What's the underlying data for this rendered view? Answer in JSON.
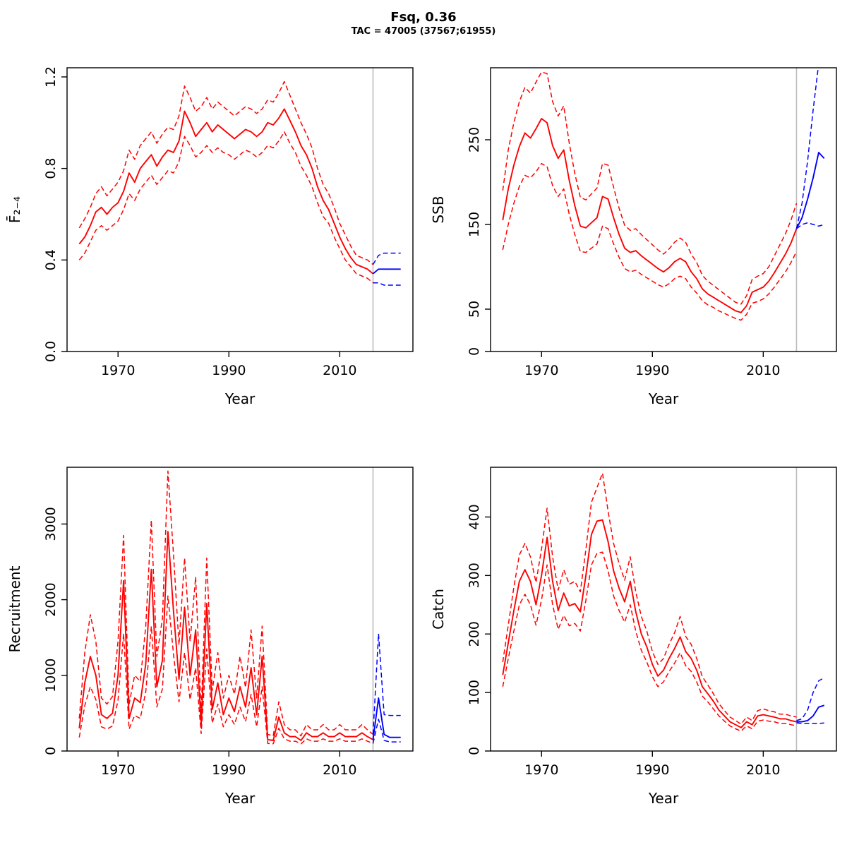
{
  "header": {
    "title": "Fsq, 0.36",
    "subtitle": "TAC = 47005 (37567;61955)"
  },
  "colors": {
    "historical": "#FF0000",
    "projection": "#0000FF",
    "assessment_year_line": "#BDBDBD",
    "axis": "#000000"
  },
  "chart_data": [
    {
      "type": "line",
      "panel": "fbar",
      "ylabel": "F̄₂₋₄",
      "xlabel": "Year",
      "xlim": [
        1960.8,
        2023.2
      ],
      "ylim": [
        0,
        1.24
      ],
      "xticks": [
        1970,
        1990,
        2010
      ],
      "yticks": [
        0,
        0.4,
        0.8,
        1.2
      ],
      "ytick_labels": [
        "0.0",
        "0.4",
        "0.8",
        "1.2"
      ],
      "vline_year": 2016,
      "series": [
        {
          "name": "hist-lower-ci",
          "color": "#FF0000",
          "dash": true,
          "start": 1963,
          "values": [
            0.4,
            0.43,
            0.48,
            0.53,
            0.55,
            0.53,
            0.55,
            0.57,
            0.62,
            0.69,
            0.66,
            0.71,
            0.74,
            0.77,
            0.73,
            0.76,
            0.79,
            0.78,
            0.83,
            0.94,
            0.9,
            0.85,
            0.87,
            0.9,
            0.87,
            0.89,
            0.87,
            0.86,
            0.84,
            0.86,
            0.88,
            0.87,
            0.85,
            0.87,
            0.9,
            0.89,
            0.92,
            0.96,
            0.91,
            0.87,
            0.81,
            0.77,
            0.72,
            0.65,
            0.59,
            0.56,
            0.5,
            0.45,
            0.4,
            0.37,
            0.34,
            0.33,
            0.32,
            0.3
          ]
        },
        {
          "name": "hist-upper-ci",
          "color": "#FF0000",
          "dash": true,
          "start": 1963,
          "values": [
            0.54,
            0.58,
            0.63,
            0.69,
            0.72,
            0.68,
            0.71,
            0.74,
            0.79,
            0.88,
            0.84,
            0.9,
            0.93,
            0.96,
            0.91,
            0.95,
            0.98,
            0.97,
            1.03,
            1.16,
            1.11,
            1.05,
            1.07,
            1.11,
            1.06,
            1.09,
            1.07,
            1.05,
            1.03,
            1.05,
            1.07,
            1.06,
            1.04,
            1.06,
            1.1,
            1.09,
            1.13,
            1.18,
            1.12,
            1.06,
            1.0,
            0.95,
            0.89,
            0.8,
            0.73,
            0.69,
            0.63,
            0.56,
            0.51,
            0.46,
            0.42,
            0.41,
            0.4,
            0.38
          ]
        },
        {
          "name": "hist-median",
          "color": "#FF0000",
          "dash": false,
          "start": 1963,
          "values": [
            0.47,
            0.5,
            0.55,
            0.61,
            0.63,
            0.6,
            0.63,
            0.65,
            0.7,
            0.78,
            0.74,
            0.8,
            0.83,
            0.86,
            0.81,
            0.85,
            0.88,
            0.87,
            0.92,
            1.05,
            1.0,
            0.94,
            0.97,
            1.0,
            0.96,
            0.99,
            0.97,
            0.95,
            0.93,
            0.95,
            0.97,
            0.96,
            0.94,
            0.96,
            1.0,
            0.99,
            1.02,
            1.06,
            1.01,
            0.96,
            0.9,
            0.86,
            0.8,
            0.72,
            0.66,
            0.62,
            0.56,
            0.5,
            0.45,
            0.41,
            0.38,
            0.37,
            0.36,
            0.34
          ]
        },
        {
          "name": "proj-lower-ci",
          "color": "#0000FF",
          "dash": true,
          "start": 2016,
          "values": [
            0.3,
            0.3,
            0.29,
            0.29,
            0.29,
            0.29
          ]
        },
        {
          "name": "proj-upper-ci",
          "color": "#0000FF",
          "dash": true,
          "start": 2016,
          "values": [
            0.38,
            0.42,
            0.43,
            0.43,
            0.43,
            0.43
          ]
        },
        {
          "name": "proj-median",
          "color": "#0000FF",
          "dash": false,
          "start": 2016,
          "values": [
            0.34,
            0.36,
            0.36,
            0.36,
            0.36,
            0.36
          ]
        }
      ]
    },
    {
      "type": "line",
      "panel": "ssb",
      "ylabel": "SSB",
      "xlabel": "Year",
      "xlim": [
        1960.8,
        2023.2
      ],
      "ylim": [
        0,
        335
      ],
      "xticks": [
        1970,
        1990,
        2010
      ],
      "yticks": [
        0,
        50,
        150,
        250
      ],
      "ytick_labels": [
        "0",
        "50",
        "150",
        "250"
      ],
      "vline_year": 2016,
      "series": [
        {
          "name": "hist-lower-ci",
          "color": "#FF0000",
          "dash": true,
          "start": 1963,
          "values": [
            120,
            150,
            175,
            195,
            208,
            205,
            212,
            222,
            218,
            196,
            183,
            192,
            162,
            138,
            118,
            117,
            122,
            127,
            148,
            145,
            127,
            111,
            98,
            94,
            96,
            91,
            87,
            83,
            79,
            76,
            80,
            86,
            89,
            86,
            76,
            69,
            60,
            55,
            52,
            48,
            45,
            42,
            39,
            37,
            44,
            57,
            59,
            62,
            68,
            76,
            85,
            94,
            105,
            118
          ]
        },
        {
          "name": "hist-upper-ci",
          "color": "#FF0000",
          "dash": true,
          "start": 1963,
          "values": [
            190,
            238,
            270,
            295,
            312,
            305,
            318,
            330,
            328,
            295,
            278,
            290,
            246,
            210,
            182,
            179,
            186,
            193,
            222,
            220,
            194,
            169,
            149,
            143,
            145,
            138,
            132,
            126,
            120,
            115,
            121,
            129,
            134,
            129,
            115,
            105,
            90,
            83,
            78,
            73,
            68,
            63,
            58,
            56,
            66,
            85,
            89,
            92,
            100,
            113,
            126,
            139,
            155,
            175
          ]
        },
        {
          "name": "hist-median",
          "color": "#FF0000",
          "dash": false,
          "start": 1963,
          "values": [
            155,
            192,
            220,
            242,
            258,
            252,
            263,
            275,
            270,
            243,
            228,
            238,
            202,
            172,
            148,
            146,
            152,
            158,
            183,
            180,
            158,
            138,
            122,
            117,
            119,
            113,
            108,
            103,
            98,
            94,
            99,
            106,
            110,
            106,
            94,
            86,
            74,
            68,
            64,
            60,
            56,
            52,
            48,
            46,
            54,
            70,
            73,
            76,
            83,
            93,
            104,
            115,
            128,
            145
          ]
        },
        {
          "name": "proj-lower-ci",
          "color": "#0000FF",
          "dash": true,
          "start": 2016,
          "values": [
            145,
            150,
            152,
            150,
            148,
            150
          ]
        },
        {
          "name": "proj-upper-ci",
          "color": "#0000FF",
          "dash": true,
          "start": 2016,
          "values": [
            145,
            175,
            225,
            285,
            340,
            360
          ]
        },
        {
          "name": "proj-median",
          "color": "#0000FF",
          "dash": false,
          "start": 2016,
          "values": [
            145,
            158,
            180,
            205,
            235,
            228
          ]
        }
      ]
    },
    {
      "type": "line",
      "panel": "recruitment",
      "ylabel": "Recruitment",
      "xlabel": "Year",
      "xlim": [
        1960.8,
        2023.2
      ],
      "ylim": [
        0,
        3750
      ],
      "xticks": [
        1970,
        1990,
        2010
      ],
      "yticks": [
        0,
        1000,
        2000,
        3000
      ],
      "ytick_labels": [
        "0",
        "1000",
        "2000",
        "3000"
      ],
      "vline_year": 2016,
      "series": [
        {
          "name": "hist-lower-ci",
          "color": "#FF0000",
          "dash": true,
          "start": 1963,
          "values": [
            180,
            600,
            850,
            680,
            320,
            290,
            330,
            670,
            1550,
            290,
            470,
            430,
            780,
            1650,
            580,
            820,
            2050,
            1280,
            650,
            1300,
            680,
            1100,
            230,
            1350,
            370,
            620,
            320,
            480,
            350,
            580,
            390,
            750,
            320,
            850,
            100,
            95,
            300,
            160,
            130,
            130,
            95,
            160,
            130,
            130,
            160,
            130,
            130,
            160,
            130,
            130,
            130,
            160,
            130,
            100
          ]
        },
        {
          "name": "hist-upper-ci",
          "color": "#FF0000",
          "dash": true,
          "start": 1963,
          "values": [
            430,
            1300,
            1800,
            1450,
            700,
            620,
            720,
            1450,
            2850,
            620,
            1000,
            920,
            1650,
            3050,
            1250,
            1750,
            3700,
            2600,
            1400,
            2550,
            1450,
            2300,
            510,
            2550,
            800,
            1300,
            700,
            1000,
            750,
            1250,
            840,
            1600,
            700,
            1650,
            220,
            200,
            650,
            350,
            280,
            280,
            200,
            350,
            280,
            280,
            350,
            280,
            280,
            350,
            280,
            280,
            280,
            350,
            280,
            220
          ]
        },
        {
          "name": "hist-median",
          "color": "#FF0000",
          "dash": false,
          "start": 1963,
          "values": [
            300,
            900,
            1250,
            1000,
            480,
            430,
            500,
            1000,
            2250,
            430,
            700,
            640,
            1150,
            2400,
            850,
            1200,
            2900,
            1850,
            950,
            1900,
            1000,
            1600,
            350,
            1950,
            550,
            900,
            480,
            700,
            520,
            850,
            580,
            1100,
            480,
            1250,
            150,
            140,
            450,
            240,
            190,
            190,
            140,
            240,
            190,
            190,
            240,
            190,
            190,
            240,
            190,
            190,
            190,
            240,
            190,
            150
          ]
        },
        {
          "name": "proj-lower-ci",
          "color": "#0000FF",
          "dash": true,
          "start": 2016,
          "values": [
            100,
            420,
            140,
            120,
            120,
            120
          ]
        },
        {
          "name": "proj-upper-ci",
          "color": "#0000FF",
          "dash": true,
          "start": 2016,
          "values": [
            220,
            1550,
            480,
            470,
            470,
            470
          ]
        },
        {
          "name": "proj-median",
          "color": "#0000FF",
          "dash": false,
          "start": 2016,
          "values": [
            150,
            700,
            220,
            180,
            180,
            180
          ]
        }
      ]
    },
    {
      "type": "line",
      "panel": "catch",
      "ylabel": "Catch",
      "xlabel": "Year",
      "xlim": [
        1960.8,
        2023.2
      ],
      "ylim": [
        0,
        485
      ],
      "xticks": [
        1970,
        1990,
        2010
      ],
      "yticks": [
        0,
        100,
        200,
        300,
        400
      ],
      "ytick_labels": [
        "0",
        "100",
        "200",
        "300",
        "400"
      ],
      "vline_year": 2016,
      "series": [
        {
          "name": "hist-lower-ci",
          "color": "#FF0000",
          "dash": true,
          "start": 1963,
          "values": [
            110,
            158,
            205,
            250,
            268,
            250,
            215,
            258,
            318,
            250,
            208,
            232,
            214,
            218,
            205,
            258,
            318,
            338,
            340,
            308,
            265,
            240,
            220,
            250,
            205,
            172,
            152,
            127,
            110,
            118,
            136,
            150,
            168,
            146,
            136,
            118,
            94,
            84,
            72,
            60,
            51,
            43,
            38,
            34,
            43,
            38,
            51,
            53,
            51,
            50,
            47,
            47,
            45,
            43
          ]
        },
        {
          "name": "hist-upper-ci",
          "color": "#FF0000",
          "dash": true,
          "start": 1963,
          "values": [
            152,
            215,
            280,
            335,
            355,
            332,
            288,
            345,
            415,
            332,
            275,
            310,
            285,
            290,
            272,
            345,
            425,
            450,
            475,
            410,
            355,
            320,
            292,
            332,
            272,
            230,
            205,
            170,
            148,
            158,
            182,
            202,
            230,
            196,
            182,
            158,
            127,
            113,
            98,
            81,
            69,
            58,
            52,
            46,
            58,
            52,
            69,
            72,
            69,
            67,
            63,
            63,
            60,
            58
          ]
        },
        {
          "name": "hist-median",
          "color": "#FF0000",
          "dash": false,
          "start": 1963,
          "values": [
            130,
            185,
            240,
            290,
            310,
            290,
            250,
            300,
            365,
            290,
            240,
            270,
            248,
            252,
            238,
            300,
            370,
            393,
            395,
            358,
            308,
            278,
            255,
            290,
            238,
            200,
            178,
            148,
            128,
            138,
            158,
            175,
            195,
            170,
            158,
            138,
            110,
            98,
            85,
            70,
            60,
            50,
            45,
            40,
            50,
            45,
            60,
            62,
            60,
            58,
            55,
            55,
            52,
            50
          ]
        },
        {
          "name": "proj-lower-ci",
          "color": "#0000FF",
          "dash": true,
          "start": 2016,
          "values": [
            48,
            47,
            47,
            47,
            47,
            48
          ]
        },
        {
          "name": "proj-upper-ci",
          "color": "#0000FF",
          "dash": true,
          "start": 2016,
          "values": [
            52,
            55,
            70,
            100,
            120,
            125
          ]
        },
        {
          "name": "proj-median",
          "color": "#0000FF",
          "dash": false,
          "start": 2016,
          "values": [
            50,
            50,
            52,
            60,
            75,
            78
          ]
        }
      ]
    }
  ]
}
